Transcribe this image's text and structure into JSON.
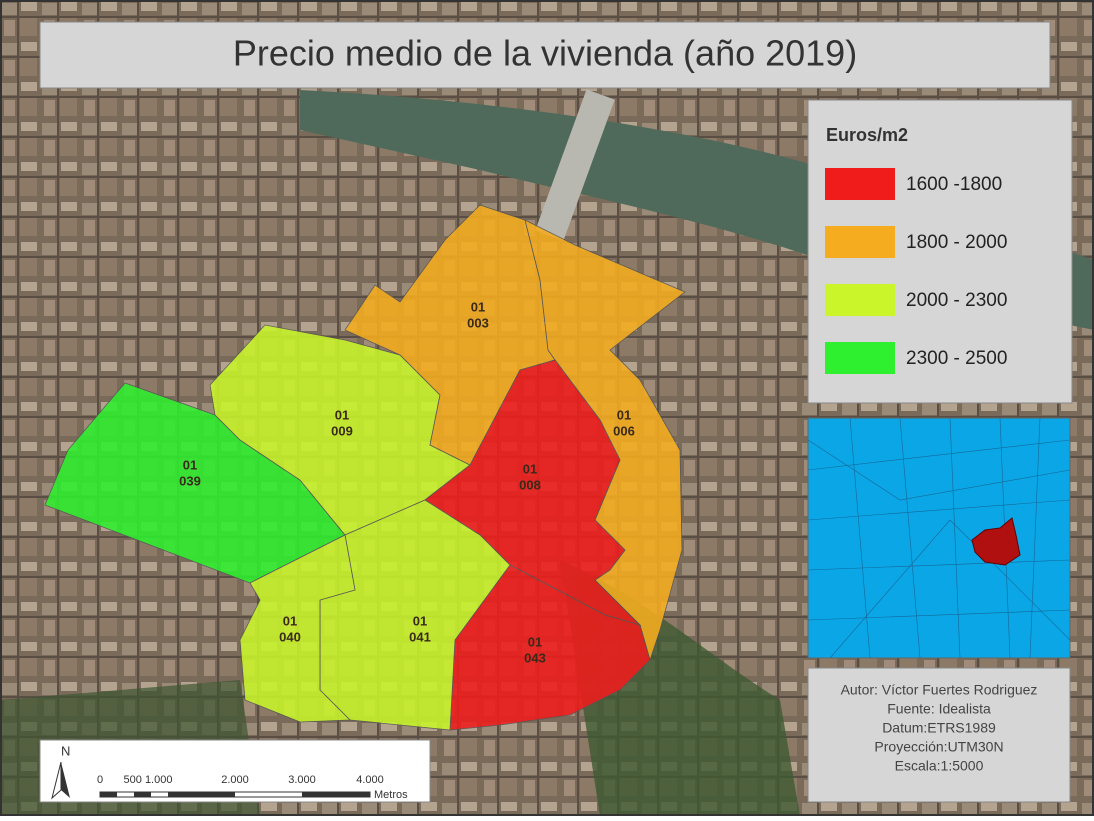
{
  "title": "Precio medio de la vivienda (año 2019)",
  "legend": {
    "title": "Euros/m2",
    "items": [
      {
        "label": "1600 -1800",
        "color": "#f01c1c"
      },
      {
        "label": "1800 - 2000",
        "color": "#f5ad1f"
      },
      {
        "label": "2000 - 2300",
        "color": "#c9f52a"
      },
      {
        "label": "2300 - 2500",
        "color": "#2ef02e"
      }
    ]
  },
  "zones": [
    {
      "district": "01",
      "section": "039",
      "color": "#2ef02e"
    },
    {
      "district": "01",
      "section": "009",
      "color": "#c9f52a"
    },
    {
      "district": "01",
      "section": "003",
      "color": "#f5ad1f"
    },
    {
      "district": "01",
      "section": "006",
      "color": "#f5ad1f"
    },
    {
      "district": "01",
      "section": "008",
      "color": "#f01c1c"
    },
    {
      "district": "01",
      "section": "043",
      "color": "#f01c1c"
    },
    {
      "district": "01",
      "section": "041",
      "color": "#c9f52a"
    },
    {
      "district": "01",
      "section": "040",
      "color": "#c9f52a"
    }
  ],
  "credits": [
    "Autor: Víctor Fuertes Rodriguez",
    "Fuente: Idealista",
    "Datum:ETRS1989",
    "Proyección:UTM30N",
    "Escala:1:5000"
  ],
  "scale_bar": {
    "north": "N",
    "labels": [
      "0",
      "500 1.000",
      "2.000",
      "3.000",
      "4.000"
    ],
    "unit": "Metros"
  }
}
